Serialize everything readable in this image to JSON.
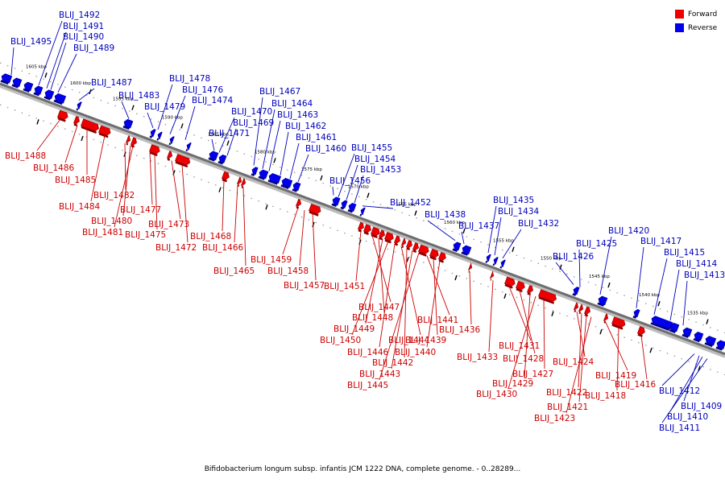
{
  "colors": {
    "forward": "#ee0000",
    "reverse": "#0000ee",
    "backbone": "#6e6e6e",
    "label_fwd": "#cc0000",
    "label_rev": "#0000bb"
  },
  "legend": {
    "forward": "Forward",
    "reverse": "Reverse"
  },
  "caption": "Bifidobacterium longum subsp. infantis JCM 1222 DNA, complete genome. - 0..28289...",
  "ticks": [
    "1605 kbp",
    "1600 kbp",
    "1595 kbp",
    "1590 kbp",
    "1585 kbp",
    "1580 kbp",
    "1575 kbp",
    "1570 kbp",
    "1565 kbp",
    "1560 kbp",
    "1555 kbp",
    "1550 kbp",
    "1545 kbp",
    "1540 kbp",
    "1535 kbp"
  ],
  "genes_reverse": [
    "BLIJ_1495",
    "BLIJ_1492",
    "BLIJ_1491",
    "BLIJ_1490",
    "BLIJ_1489",
    "BLIJ_1487",
    "BLIJ_1483",
    "BLIJ_1479",
    "BLIJ_1478",
    "BLIJ_1476",
    "BLIJ_1474",
    "BLIJ_1471",
    "BLIJ_1470",
    "BLIJ_1469",
    "BLIJ_1467",
    "BLIJ_1464",
    "BLIJ_1463",
    "BLIJ_1462",
    "BLIJ_1461",
    "BLIJ_1460",
    "BLIJ_1456",
    "BLIJ_1455",
    "BLIJ_1454",
    "BLIJ_1453",
    "BLIJ_1452",
    "BLIJ_1438",
    "BLIJ_1437",
    "BLIJ_1435",
    "BLIJ_1434",
    "BLIJ_1432",
    "BLIJ_1426",
    "BLIJ_1425",
    "BLIJ_1420",
    "BLIJ_1417",
    "BLIJ_1415",
    "BLIJ_1414",
    "BLIJ_1413",
    "BLIJ_1412",
    "BLIJ_1409",
    "BLIJ_1410",
    "BLIJ_1411"
  ],
  "genes_forward": [
    "BLIJ_1488",
    "BLIJ_1486",
    "BLIJ_1485",
    "BLIJ_1482",
    "BLIJ_1484",
    "BLIJ_1480",
    "BLIJ_1477",
    "BLIJ_1481",
    "BLIJ_1475",
    "BLIJ_1473",
    "BLIJ_1472",
    "BLIJ_1468",
    "BLIJ_1466",
    "BLIJ_1465",
    "BLIJ_1459",
    "BLIJ_1458",
    "BLIJ_1457",
    "BLIJ_1451",
    "BLIJ_1447",
    "BLIJ_1448",
    "BLIJ_1449",
    "BLIJ_1450",
    "BLIJ_1446",
    "BLIJ_1444",
    "BLIJ_1442",
    "BLIJ_1443",
    "BLIJ_1445",
    "BLIJ_1441",
    "BLIJ_1439",
    "BLIJ_1440",
    "BLIJ_1436",
    "BLIJ_1433",
    "BLIJ_1431",
    "BLIJ_1428",
    "BLIJ_1429",
    "BLIJ_1430",
    "BLIJ_1427",
    "BLIJ_1424",
    "BLIJ_1422",
    "BLIJ_1421",
    "BLIJ_1423",
    "BLIJ_1419",
    "BLIJ_1418",
    "BLIJ_1416"
  ]
}
